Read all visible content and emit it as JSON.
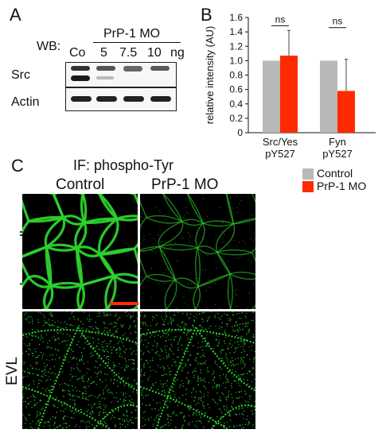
{
  "panelA": {
    "letter": "A",
    "wb_label": "WB:",
    "mo_header": "PrP-1 MO",
    "lanes": [
      "Co",
      "5",
      "7.5",
      "10"
    ],
    "unit": "ng",
    "rows": [
      "Src",
      "Actin"
    ]
  },
  "panelB": {
    "letter": "B",
    "chart_data": {
      "type": "bar",
      "categories": [
        "Src/Yes\npY527",
        "Fyn\npY527"
      ],
      "category_lines": [
        [
          "Src/Yes",
          "pY527"
        ],
        [
          "Fyn",
          "pY527"
        ]
      ],
      "series": [
        {
          "name": "Control",
          "values": [
            1.0,
            1.0
          ],
          "color": "#b8b8b8"
        },
        {
          "name": "PrP-1 MO",
          "values": [
            1.07,
            0.58
          ],
          "errors": [
            0.35,
            0.44
          ],
          "color": "#ff2a00"
        }
      ],
      "significance": [
        "ns",
        "ns"
      ],
      "ylabel": "relative intensity (AU)",
      "ylim": [
        0,
        1.6
      ],
      "yticks": [
        "0",
        "0.2",
        "0.4",
        "0.6",
        "0.8",
        "1.0",
        "1.2",
        "1.4",
        "1.6"
      ],
      "grid": false,
      "legend": "bottom-right"
    }
  },
  "panelC": {
    "letter": "C",
    "title": "IF: phospho-Tyr",
    "columns": [
      "Control",
      "PrP-1 MO"
    ],
    "rows": [
      "deep cells",
      "EVL"
    ],
    "scale_bar_color": "#ff2a00",
    "stain_color": "#2bd42b"
  },
  "legend": {
    "items": [
      {
        "label": "Control",
        "color": "#b8b8b8"
      },
      {
        "label": "PrP-1 MO",
        "color": "#ff2a00"
      }
    ]
  }
}
